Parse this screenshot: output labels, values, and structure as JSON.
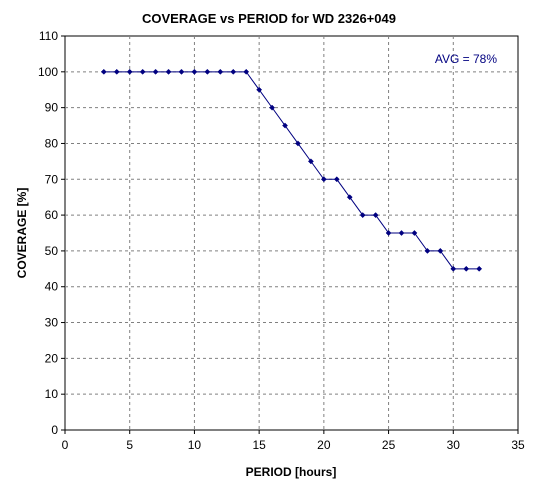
{
  "chart_data": {
    "type": "line",
    "title": "COVERAGE vs PERIOD for WD 2326+049",
    "xlabel": "PERIOD [hours]",
    "ylabel": "COVERAGE [%]",
    "xlim": [
      0,
      35
    ],
    "ylim": [
      0,
      110
    ],
    "x_ticks": [
      0,
      5,
      10,
      15,
      20,
      25,
      30,
      35
    ],
    "y_ticks": [
      0,
      10,
      20,
      30,
      40,
      50,
      60,
      70,
      80,
      90,
      100,
      110
    ],
    "grid": "horizontal and vertical dashed",
    "legend": "none",
    "annotation": "AVG = 78%",
    "annotation_color": "#000080",
    "series_color": "#000080",
    "series": [
      {
        "x": [
          3,
          4,
          5,
          6,
          7,
          8,
          9,
          10,
          11,
          12,
          13,
          14,
          15,
          16,
          17,
          18,
          19,
          20,
          21,
          22,
          23,
          24,
          25,
          26,
          27,
          28,
          29,
          30,
          31,
          32
        ],
        "values": [
          100,
          100,
          100,
          100,
          100,
          100,
          100,
          100,
          100,
          100,
          100,
          100,
          95,
          90,
          85,
          80,
          75,
          70,
          70,
          65,
          60,
          60,
          55,
          55,
          55,
          50,
          50,
          45,
          45,
          45
        ]
      }
    ]
  }
}
